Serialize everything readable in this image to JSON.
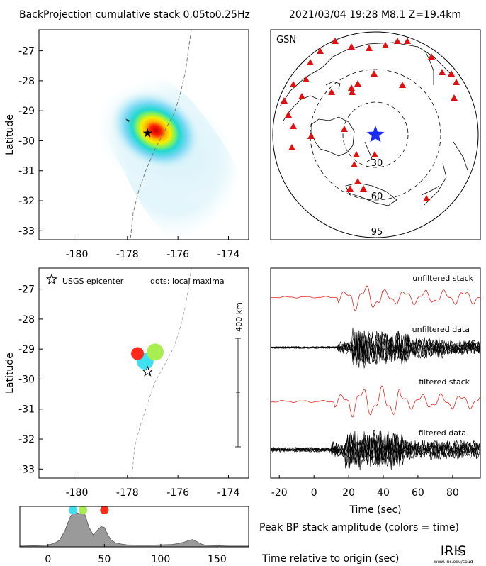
{
  "header": {
    "title": "BackProjection cumulative stack 0.05to0.25Hz",
    "event": "2021/03/04 19:28  M8.1  Z=19.4km"
  },
  "logo": {
    "text": "IRIS",
    "url": "www.iris.edu/spud"
  },
  "chart_data": [
    {
      "id": "bp-map",
      "type": "heatmap",
      "ylabel": "Latitude",
      "xlim": [
        -181.5,
        -173.2
      ],
      "ylim": [
        -33.3,
        -26.3
      ],
      "xticks": [
        -180,
        -178,
        -176,
        -174
      ],
      "yticks": [
        -27,
        -28,
        -29,
        -30,
        -31,
        -32,
        -33
      ],
      "epicenter": {
        "lon": -177.2,
        "lat": -29.75
      },
      "peak": {
        "lon": -177.1,
        "lat": -29.3
      }
    },
    {
      "id": "station-map",
      "type": "scatter",
      "title": "GSN",
      "ring_labels": [
        "30",
        "60",
        "95"
      ],
      "epicenter_marker": "blue-star",
      "station_marker": "red-triangle"
    },
    {
      "id": "maxima-map",
      "type": "scatter",
      "ylabel": "Latitude",
      "xlim": [
        -181.5,
        -173.2
      ],
      "ylim": [
        -33.3,
        -26.3
      ],
      "xticks": [
        -180,
        -178,
        -176,
        -174
      ],
      "yticks": [
        -27,
        -28,
        -29,
        -30,
        -31,
        -32,
        -33
      ],
      "legend": {
        "epicenter": "USGS epicenter",
        "dots": "dots: local maxima"
      },
      "scalebar": {
        "label": "400 km"
      },
      "epicenter": {
        "lon": -177.2,
        "lat": -29.75
      },
      "maxima": [
        {
          "lon": -177.3,
          "lat": -29.4,
          "color": "#40e0f0",
          "size": 12
        },
        {
          "lon": -176.9,
          "lat": -29.1,
          "color": "#a8ee50",
          "size": 12
        },
        {
          "lon": -177.6,
          "lat": -29.15,
          "color": "#ff2a1a",
          "size": 9
        }
      ]
    },
    {
      "id": "waveforms",
      "type": "line",
      "xlabel": "Time (sec)",
      "xlim": [
        -25,
        96
      ],
      "xticks": [
        -20,
        0,
        20,
        40,
        60,
        80
      ],
      "series": [
        {
          "name": "unfiltered stack"
        },
        {
          "name": "unfiltered data"
        },
        {
          "name": "filtered stack"
        },
        {
          "name": "filtered data"
        }
      ]
    },
    {
      "id": "peak-amplitude",
      "type": "area",
      "xlabel": "Time relative to origin (sec)",
      "ylabel": "Peak BP stack amplitude (colors = time)",
      "xlim": [
        -25,
        178
      ],
      "xticks": [
        0,
        50,
        100,
        150
      ],
      "x": [
        -25,
        -10,
        0,
        5,
        10,
        15,
        18,
        20,
        22,
        25,
        28,
        30,
        33,
        36,
        40,
        44,
        47,
        50,
        53,
        56,
        60,
        65,
        70,
        80,
        90,
        100,
        110,
        115,
        120,
        125,
        128,
        132,
        136,
        140,
        150,
        160,
        170,
        178
      ],
      "y": [
        0.02,
        0.03,
        0.05,
        0.08,
        0.16,
        0.4,
        0.62,
        0.76,
        0.83,
        0.85,
        0.82,
        0.84,
        0.78,
        0.5,
        0.3,
        0.42,
        0.5,
        0.48,
        0.3,
        0.17,
        0.1,
        0.07,
        0.05,
        0.04,
        0.04,
        0.05,
        0.06,
        0.08,
        0.11,
        0.16,
        0.18,
        0.13,
        0.07,
        0.04,
        0.03,
        0.02,
        0.02,
        0.02
      ],
      "markers": [
        {
          "x": 22,
          "color": "#40e0f0"
        },
        {
          "x": 31,
          "color": "#a8ee50"
        },
        {
          "x": 50,
          "color": "#ff2a1a"
        }
      ]
    }
  ]
}
